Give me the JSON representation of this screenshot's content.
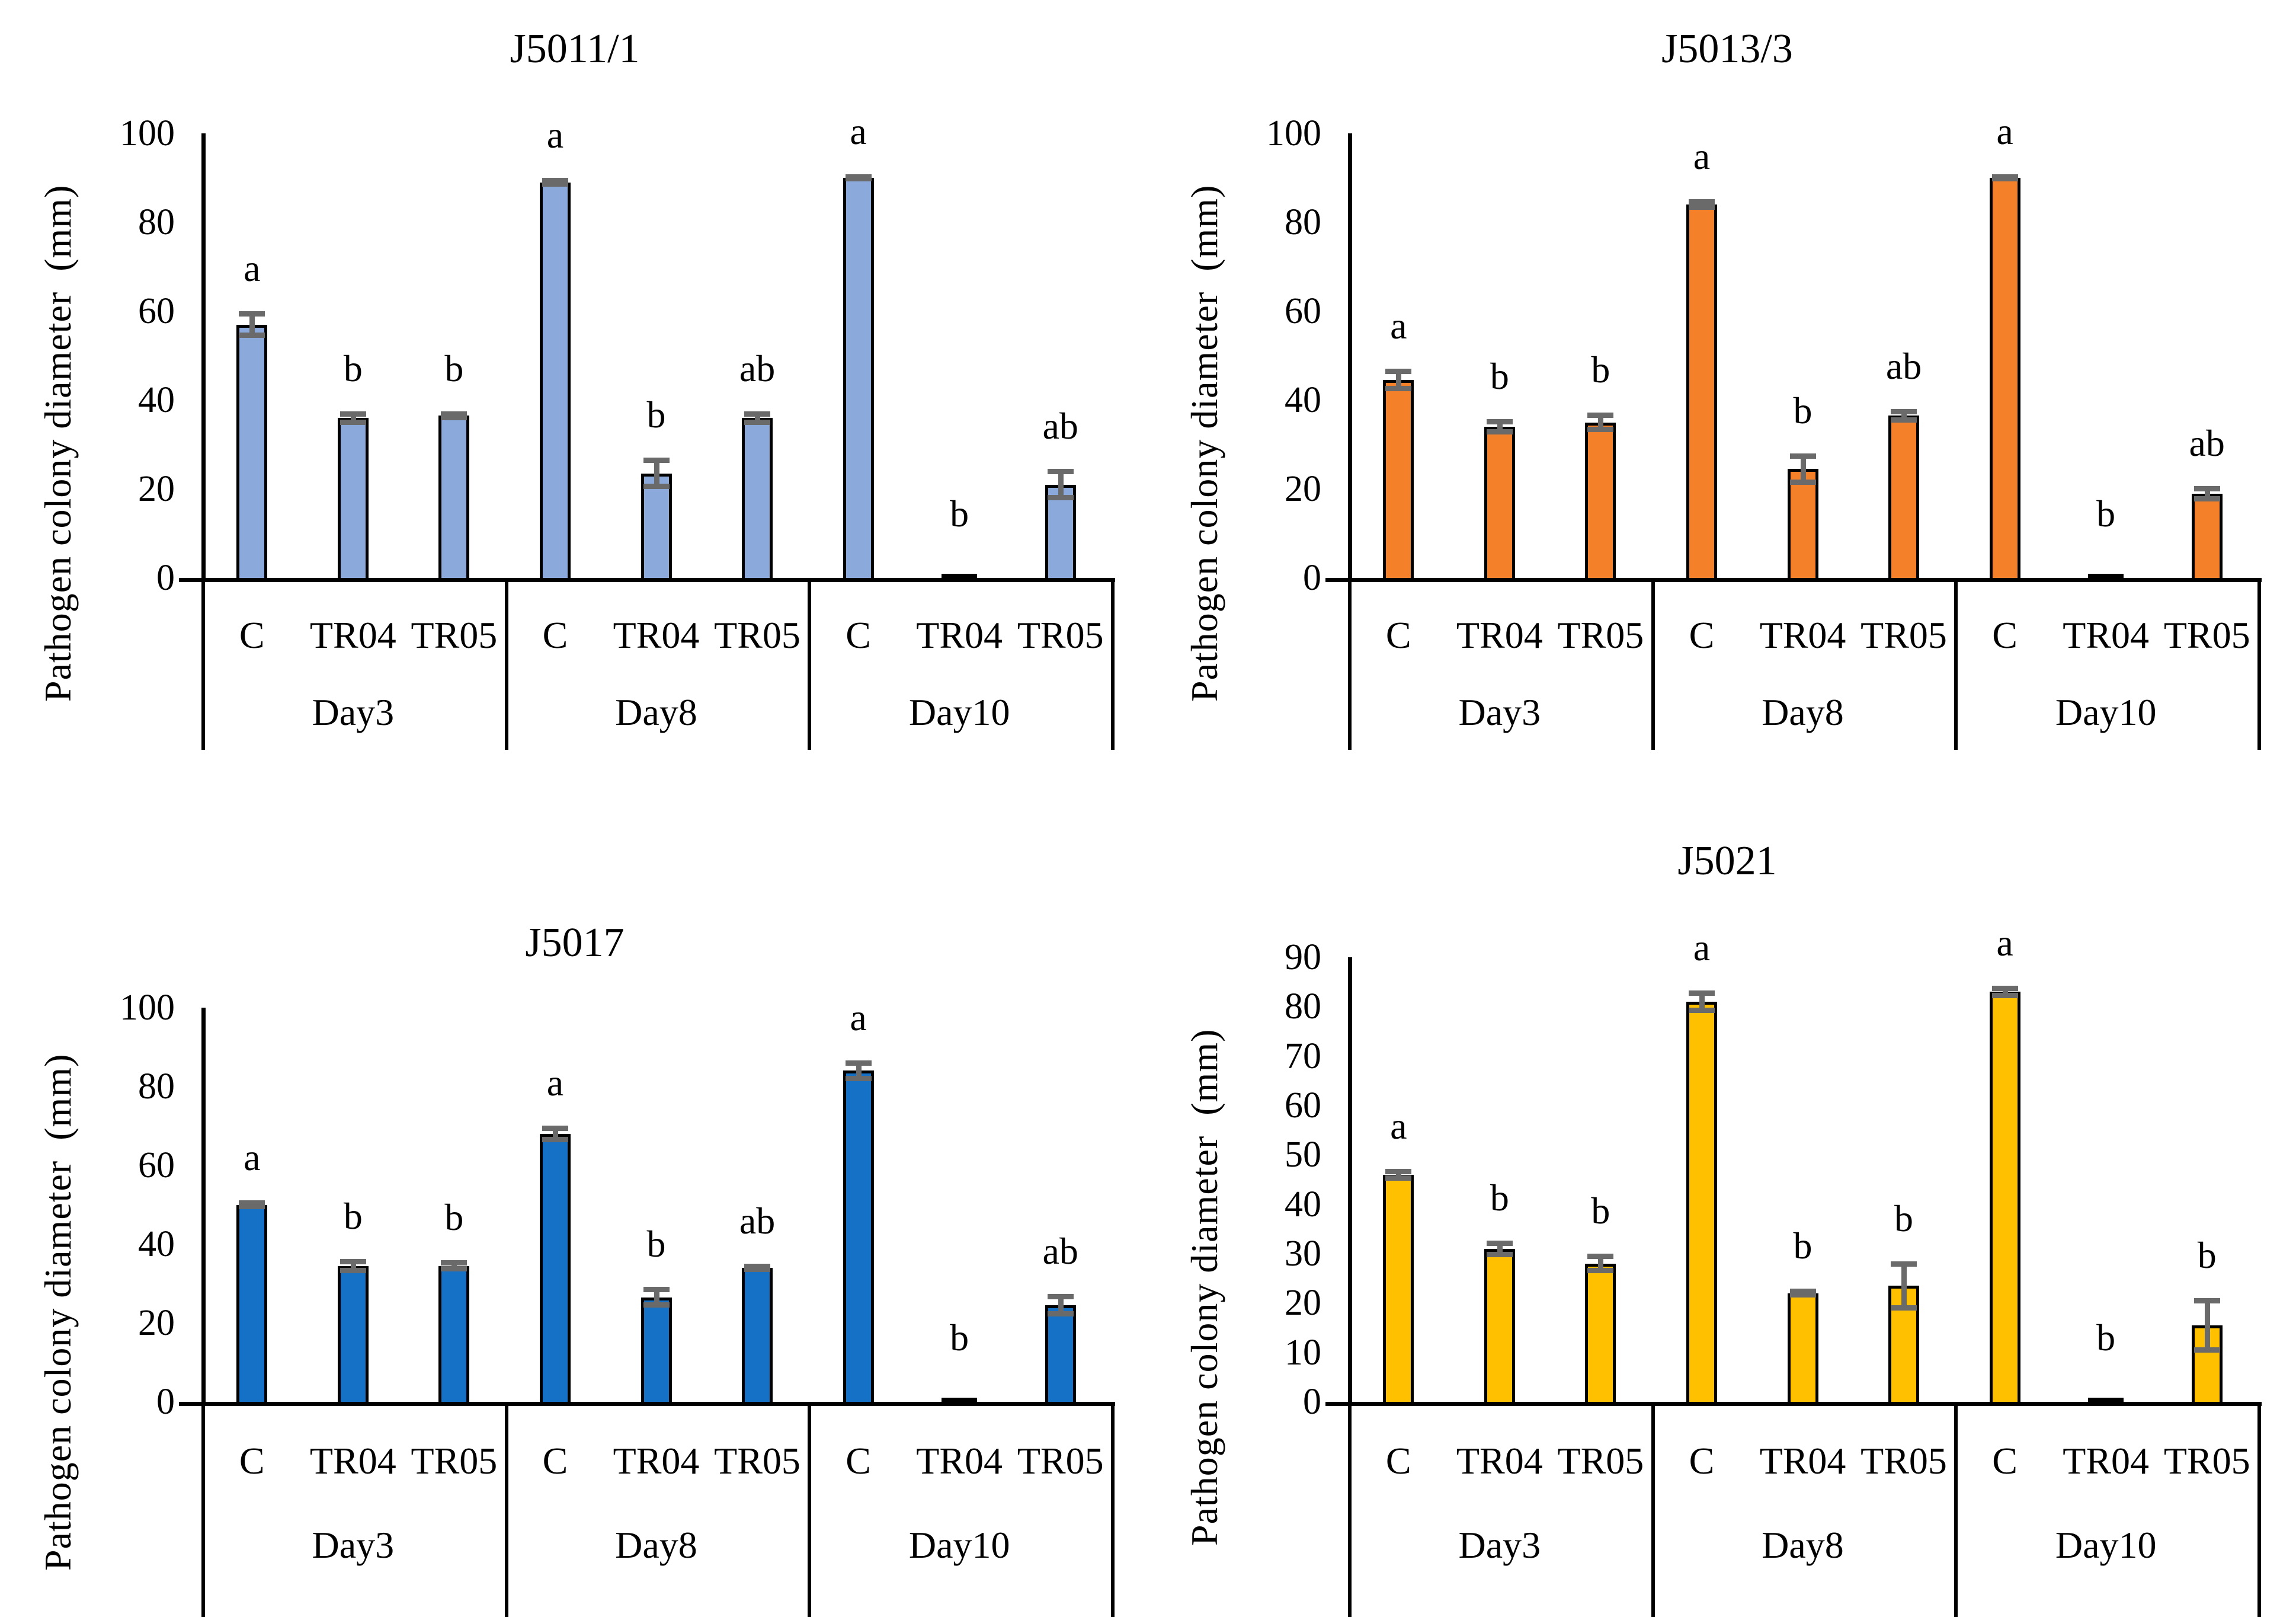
{
  "chart_data": [
    {
      "type": "bar",
      "title": "J5011/1",
      "ylabel": "Pathogen colony diameter  (mm)",
      "ylim": [
        0,
        100
      ],
      "yticks": [
        0,
        20,
        40,
        60,
        80,
        100
      ],
      "grid": false,
      "legend_position": "none",
      "bar_color": "#8CA9DB",
      "bar_border_color": "#000000",
      "error_bar_color": "#6A6A6A",
      "categories_row": [
        "C",
        "TR04",
        "TR05"
      ],
      "day_groups": [
        "Day3",
        "Day8",
        "Day10"
      ],
      "groups": [
        {
          "day": "Day3",
          "bars": [
            {
              "treatment": "C",
              "value": 57,
              "error": 2.5,
              "letter": "a"
            },
            {
              "treatment": "TR04",
              "value": 36,
              "error": 1,
              "letter": "b"
            },
            {
              "treatment": "TR05",
              "value": 36.5,
              "error": 0.5,
              "letter": "b"
            }
          ]
        },
        {
          "day": "Day8",
          "bars": [
            {
              "treatment": "C",
              "value": 89,
              "error": 0.5,
              "letter": "a"
            },
            {
              "treatment": "TR04",
              "value": 23.5,
              "error": 3,
              "letter": "b"
            },
            {
              "treatment": "TR05",
              "value": 36,
              "error": 1,
              "letter": "ab"
            }
          ]
        },
        {
          "day": "Day10",
          "bars": [
            {
              "treatment": "C",
              "value": 90,
              "error": 0.3,
              "letter": "a"
            },
            {
              "treatment": "TR04",
              "value": 0,
              "error": 0,
              "letter": "b"
            },
            {
              "treatment": "TR05",
              "value": 21,
              "error": 3,
              "letter": "ab"
            }
          ]
        }
      ]
    },
    {
      "type": "bar",
      "title": "J5013/3",
      "ylabel": "Pathogen colony diameter  (mm)",
      "ylim": [
        0,
        100
      ],
      "yticks": [
        0,
        20,
        40,
        60,
        80,
        100
      ],
      "grid": false,
      "legend_position": "none",
      "bar_color": "#F4802A",
      "bar_border_color": "#000000",
      "error_bar_color": "#6A6A6A",
      "categories_row": [
        "C",
        "TR04",
        "TR05"
      ],
      "day_groups": [
        "Day3",
        "Day8",
        "Day10"
      ],
      "groups": [
        {
          "day": "Day3",
          "bars": [
            {
              "treatment": "C",
              "value": 44.5,
              "error": 2,
              "letter": "a"
            },
            {
              "treatment": "TR04",
              "value": 34,
              "error": 1.2,
              "letter": "b"
            },
            {
              "treatment": "TR05",
              "value": 35,
              "error": 1.7,
              "letter": "b"
            }
          ]
        },
        {
          "day": "Day8",
          "bars": [
            {
              "treatment": "C",
              "value": 84,
              "error": 0.7,
              "letter": "a"
            },
            {
              "treatment": "TR04",
              "value": 24.5,
              "error": 3,
              "letter": "b"
            },
            {
              "treatment": "TR05",
              "value": 36.5,
              "error": 1,
              "letter": "ab"
            }
          ]
        },
        {
          "day": "Day10",
          "bars": [
            {
              "treatment": "C",
              "value": 90,
              "error": 0.3,
              "letter": "a"
            },
            {
              "treatment": "TR04",
              "value": 0,
              "error": 0,
              "letter": "b"
            },
            {
              "treatment": "TR05",
              "value": 19,
              "error": 1.2,
              "letter": "ab"
            }
          ]
        }
      ]
    },
    {
      "type": "bar",
      "title": "J5017",
      "ylabel": "Pathogen colony diameter  (mm)",
      "ylim": [
        0,
        100
      ],
      "yticks": [
        0,
        20,
        40,
        60,
        80,
        100
      ],
      "grid": false,
      "legend_position": "none",
      "bar_color": "#1471C6",
      "bar_border_color": "#000000",
      "error_bar_color": "#6A6A6A",
      "categories_row": [
        "C",
        "TR04",
        "TR05"
      ],
      "day_groups": [
        "Day3",
        "Day8",
        "Day10"
      ],
      "groups": [
        {
          "day": "Day3",
          "bars": [
            {
              "treatment": "C",
              "value": 50,
              "error": 0.5,
              "letter": "a"
            },
            {
              "treatment": "TR04",
              "value": 34.5,
              "error": 1.2,
              "letter": "b"
            },
            {
              "treatment": "TR05",
              "value": 34.5,
              "error": 0.8,
              "letter": "b"
            }
          ]
        },
        {
          "day": "Day8",
          "bars": [
            {
              "treatment": "C",
              "value": 68,
              "error": 1.5,
              "letter": "a"
            },
            {
              "treatment": "TR04",
              "value": 26.5,
              "error": 2,
              "letter": "b"
            },
            {
              "treatment": "TR05",
              "value": 34,
              "error": 0.5,
              "letter": "ab"
            }
          ]
        },
        {
          "day": "Day10",
          "bars": [
            {
              "treatment": "C",
              "value": 84,
              "error": 2,
              "letter": "a"
            },
            {
              "treatment": "TR04",
              "value": 0,
              "error": 0,
              "letter": "b"
            },
            {
              "treatment": "TR05",
              "value": 24.5,
              "error": 2.2,
              "letter": "ab"
            }
          ]
        }
      ]
    },
    {
      "type": "bar",
      "title": "J5021",
      "ylabel": "Pathogen colony diameter  (mm)",
      "ylim": [
        0,
        90
      ],
      "yticks": [
        0,
        10,
        20,
        30,
        40,
        50,
        60,
        70,
        80,
        90
      ],
      "grid": false,
      "legend_position": "none",
      "bar_color": "#FFC000",
      "bar_border_color": "#000000",
      "error_bar_color": "#6A6A6A",
      "categories_row": [
        "C",
        "TR04",
        "TR05"
      ],
      "day_groups": [
        "Day3",
        "Day8",
        "Day10"
      ],
      "groups": [
        {
          "day": "Day3",
          "bars": [
            {
              "treatment": "C",
              "value": 46,
              "error": 0.7,
              "letter": "a"
            },
            {
              "treatment": "TR04",
              "value": 31,
              "error": 1.2,
              "letter": "b"
            },
            {
              "treatment": "TR05",
              "value": 28,
              "error": 1.5,
              "letter": "b"
            }
          ]
        },
        {
          "day": "Day8",
          "bars": [
            {
              "treatment": "C",
              "value": 81,
              "error": 1.8,
              "letter": "a"
            },
            {
              "treatment": "TR04",
              "value": 22,
              "error": 0.4,
              "letter": "b"
            },
            {
              "treatment": "TR05",
              "value": 23.5,
              "error": 4.5,
              "letter": "b"
            }
          ]
        },
        {
          "day": "Day10",
          "bars": [
            {
              "treatment": "C",
              "value": 83,
              "error": 0.8,
              "letter": "a"
            },
            {
              "treatment": "TR04",
              "value": 0,
              "error": 0,
              "letter": "b"
            },
            {
              "treatment": "TR05",
              "value": 15.5,
              "error": 5,
              "letter": "b"
            }
          ]
        }
      ]
    }
  ]
}
